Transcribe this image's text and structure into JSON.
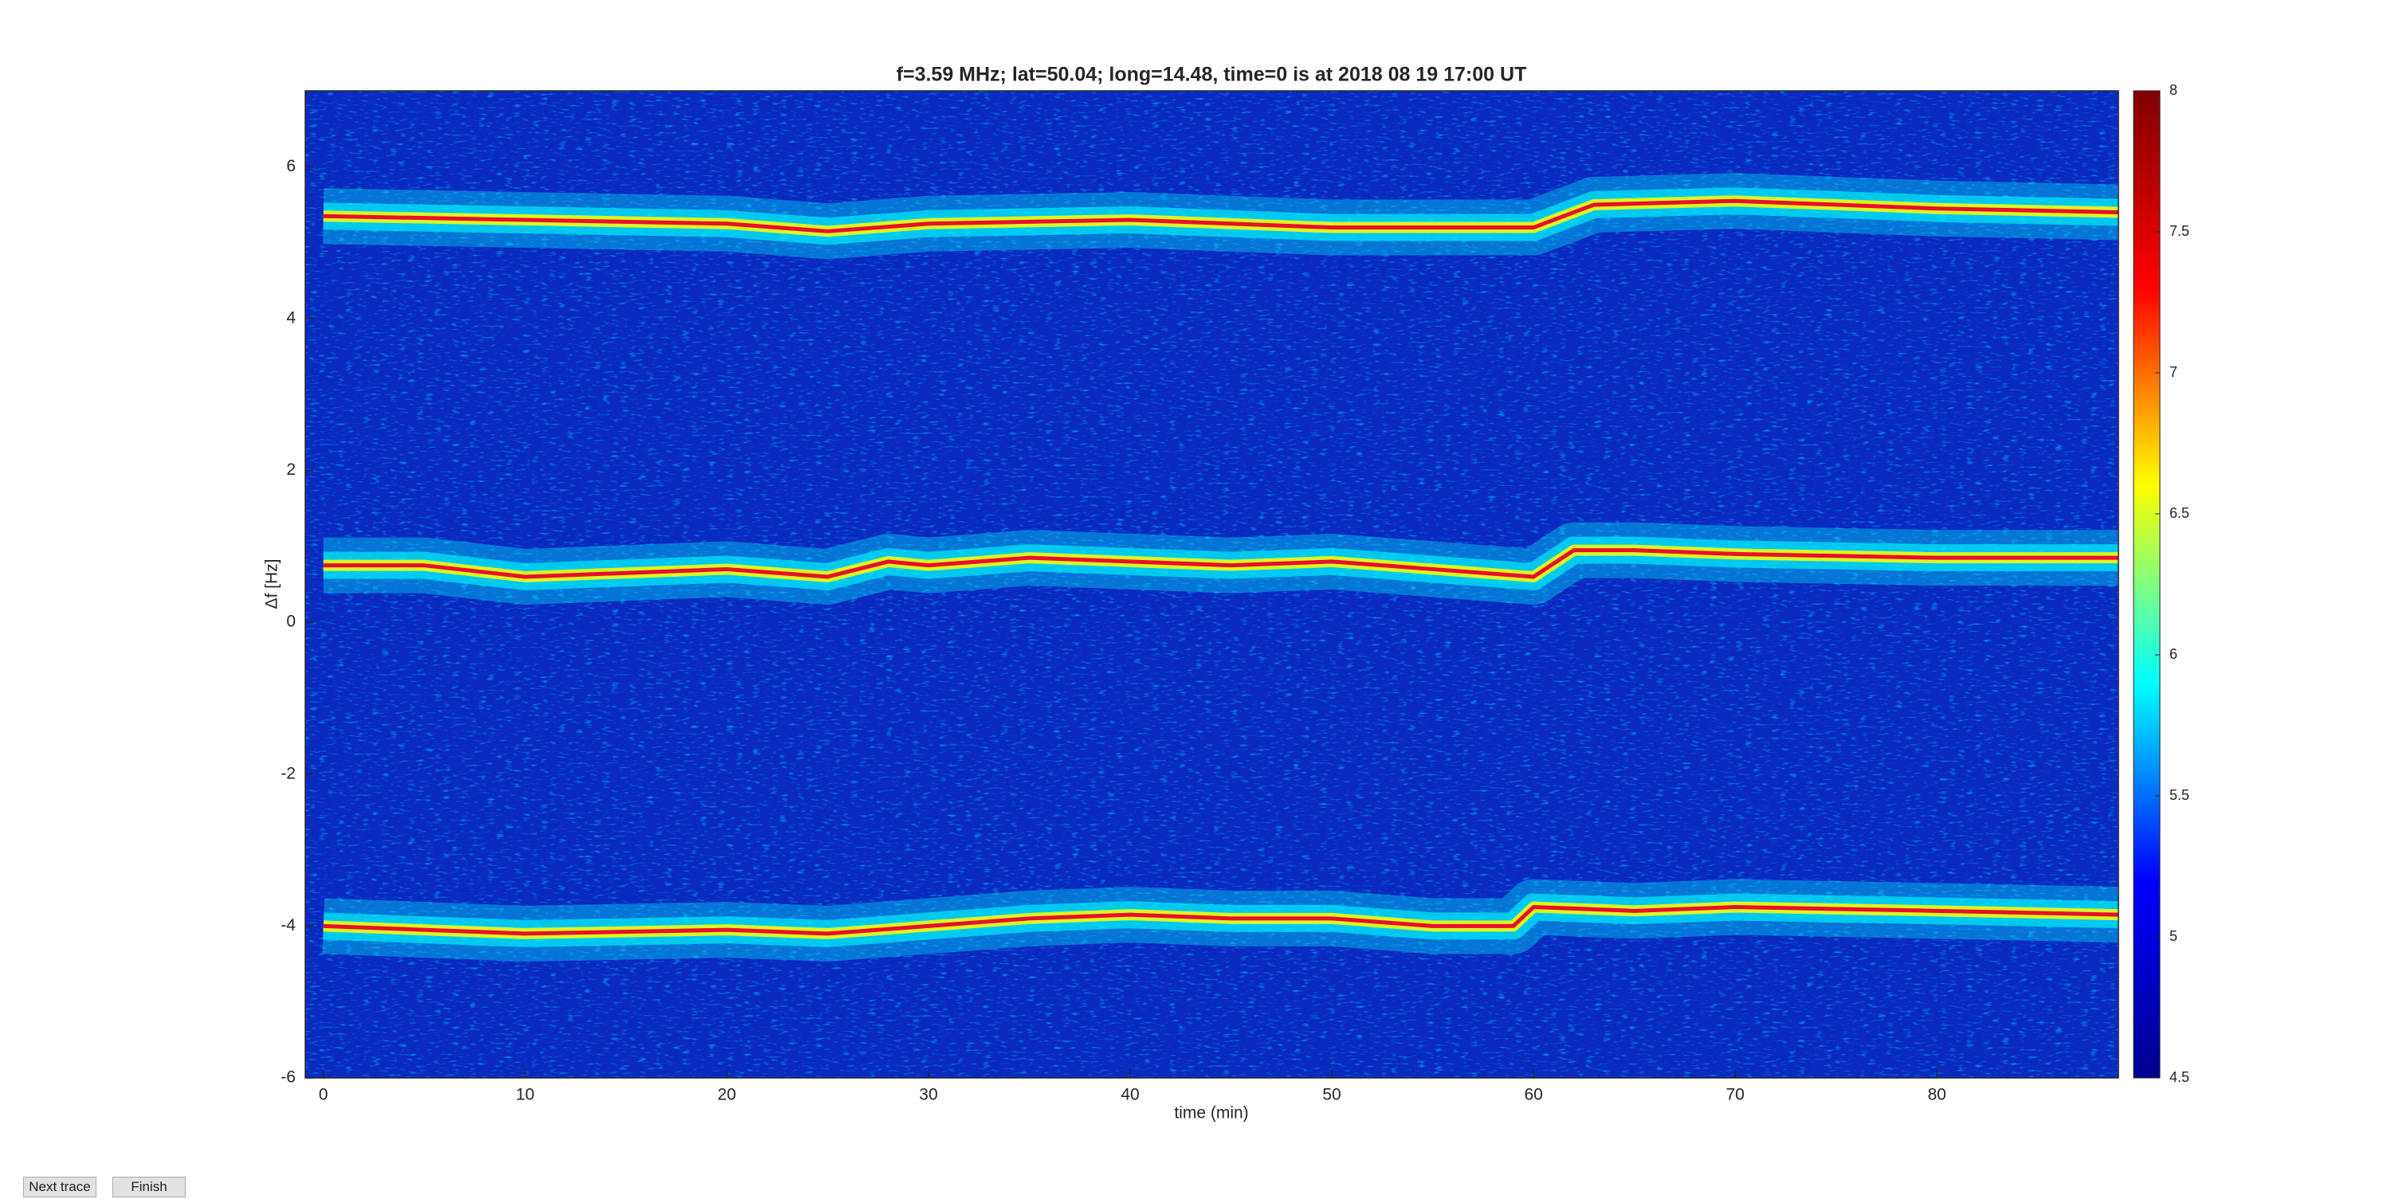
{
  "chart_data": {
    "type": "spectrogram",
    "title": "f=3.59 MHz;  lat=50.04; long=14.48, time=0 is at 2018 08 19 17:00 UT",
    "x_label": "time (min)",
    "y_label": "Δf [Hz]",
    "xlim": [
      -0.9,
      89
    ],
    "xticks": [
      0,
      10,
      20,
      30,
      40,
      50,
      60,
      70,
      80
    ],
    "ylim": [
      -6,
      7
    ],
    "yticks": [
      -6,
      -4,
      -2,
      0,
      2,
      4,
      6
    ],
    "clim": [
      4.5,
      8
    ],
    "cticks": [
      4.5,
      5,
      5.5,
      6,
      6.5,
      7,
      7.5,
      8
    ],
    "colormap": [
      "#00008f",
      "#0000ff",
      "#00ffff",
      "#ffff00",
      "#ff0000",
      "#800000"
    ],
    "series": [
      {
        "color": "#e8102a",
        "x": [
          0,
          10,
          20,
          25,
          30,
          40,
          45,
          50,
          55,
          60,
          63,
          70,
          80,
          89
        ],
        "y": [
          5.35,
          5.3,
          5.25,
          5.15,
          5.25,
          5.3,
          5.25,
          5.2,
          5.2,
          5.2,
          5.5,
          5.55,
          5.45,
          5.4
        ]
      },
      {
        "color": "#e8102a",
        "x": [
          0,
          5,
          10,
          15,
          20,
          25,
          28,
          30,
          35,
          40,
          45,
          50,
          55,
          60,
          62,
          65,
          70,
          80,
          89
        ],
        "y": [
          0.75,
          0.75,
          0.6,
          0.65,
          0.7,
          0.6,
          0.8,
          0.75,
          0.85,
          0.8,
          0.75,
          0.8,
          0.7,
          0.6,
          0.95,
          0.95,
          0.9,
          0.85,
          0.85
        ]
      },
      {
        "color": "#e8102a",
        "x": [
          0,
          10,
          20,
          25,
          30,
          35,
          40,
          45,
          50,
          55,
          59,
          60,
          65,
          70,
          80,
          89
        ],
        "y": [
          -4.0,
          -4.1,
          -4.05,
          -4.1,
          -4.0,
          -3.9,
          -3.85,
          -3.9,
          -3.9,
          -4.0,
          -4.0,
          -3.75,
          -3.8,
          -3.75,
          -3.8,
          -3.85
        ]
      }
    ]
  },
  "buttons": [
    "Next trace",
    "Finish"
  ]
}
